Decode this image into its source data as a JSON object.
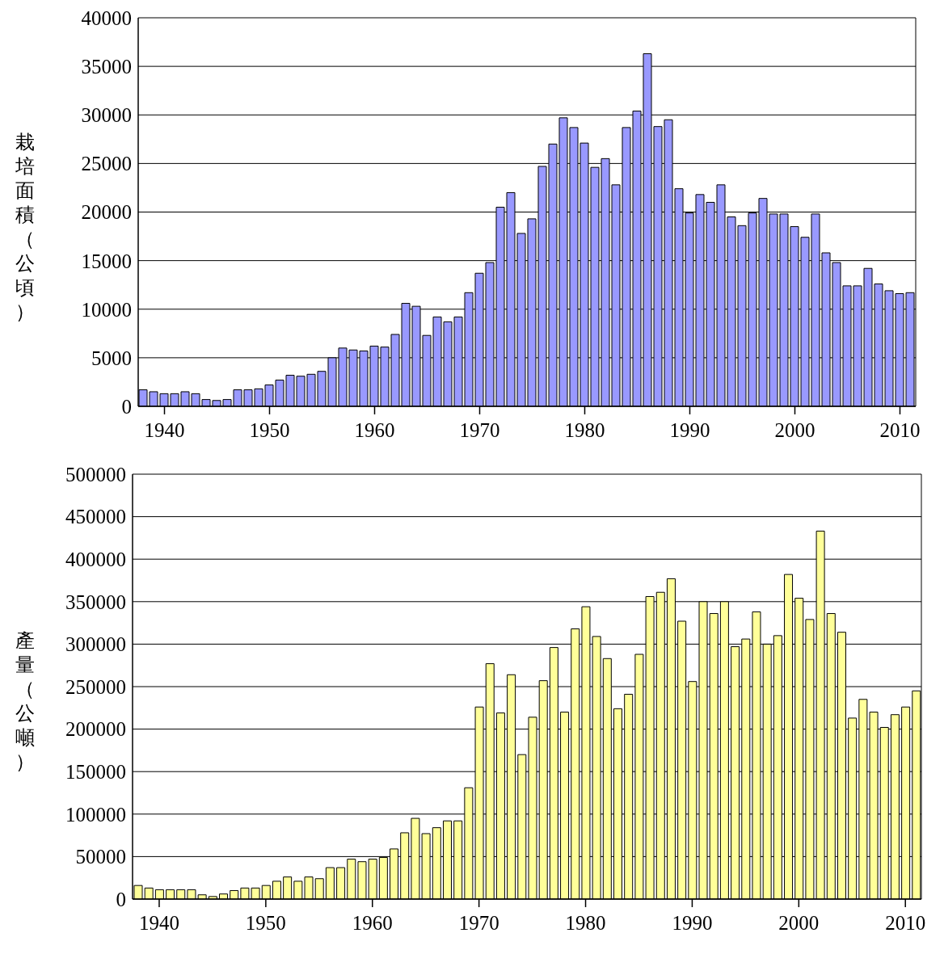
{
  "chart_data": [
    {
      "type": "bar",
      "ylabel": "栽培面積（公頃）",
      "color": "#9999ff",
      "grid": "y",
      "xlim": [
        1937.5,
        2011.5
      ],
      "xticks": [
        1940,
        1950,
        1960,
        1970,
        1980,
        1990,
        2000,
        2010
      ],
      "ylim": [
        0,
        40000
      ],
      "yticks": [
        0,
        5000,
        10000,
        15000,
        20000,
        25000,
        30000,
        35000,
        40000
      ],
      "x": [
        1938,
        1939,
        1940,
        1941,
        1942,
        1943,
        1944,
        1945,
        1946,
        1947,
        1948,
        1949,
        1950,
        1951,
        1952,
        1953,
        1954,
        1955,
        1956,
        1957,
        1958,
        1959,
        1960,
        1961,
        1962,
        1963,
        1964,
        1965,
        1966,
        1967,
        1968,
        1969,
        1970,
        1971,
        1972,
        1973,
        1974,
        1975,
        1976,
        1977,
        1978,
        1979,
        1980,
        1981,
        1982,
        1983,
        1984,
        1985,
        1986,
        1987,
        1988,
        1989,
        1990,
        1991,
        1992,
        1993,
        1994,
        1995,
        1996,
        1997,
        1998,
        1999,
        2000,
        2001,
        2002,
        2003,
        2004,
        2005,
        2006,
        2007,
        2008,
        2009,
        2010,
        2011
      ],
      "values": [
        1700,
        1500,
        1300,
        1300,
        1500,
        1300,
        700,
        600,
        700,
        1700,
        1700,
        1800,
        2200,
        2700,
        3200,
        3100,
        3300,
        3600,
        5000,
        6000,
        5800,
        5700,
        6200,
        6100,
        7400,
        10600,
        10300,
        7300,
        9200,
        8700,
        9200,
        11700,
        13700,
        14800,
        20500,
        22000,
        17800,
        19300,
        24700,
        27000,
        29700,
        28700,
        27100,
        24600,
        25500,
        22800,
        28700,
        30400,
        36300,
        28800,
        29500,
        22400,
        19900,
        21800,
        21000,
        22800,
        19500,
        18600,
        19900,
        21400,
        19800,
        19800,
        18500,
        17400,
        19800,
        15800,
        14800,
        12400,
        12400,
        14200,
        12600,
        11900,
        11600,
        11700
      ]
    },
    {
      "type": "bar",
      "ylabel": "產量（公噸）",
      "color": "#ffff99",
      "grid": "y",
      "xlim": [
        1937.5,
        2011.5
      ],
      "xticks": [
        1940,
        1950,
        1960,
        1970,
        1980,
        1990,
        2000,
        2010
      ],
      "ylim": [
        0,
        500000
      ],
      "yticks": [
        0,
        50000,
        100000,
        150000,
        200000,
        250000,
        300000,
        350000,
        400000,
        450000,
        500000
      ],
      "x": [
        1938,
        1939,
        1940,
        1941,
        1942,
        1943,
        1944,
        1945,
        1946,
        1947,
        1948,
        1949,
        1950,
        1951,
        1952,
        1953,
        1954,
        1955,
        1956,
        1957,
        1958,
        1959,
        1960,
        1961,
        1962,
        1963,
        1964,
        1965,
        1966,
        1967,
        1968,
        1969,
        1970,
        1971,
        1972,
        1973,
        1974,
        1975,
        1976,
        1977,
        1978,
        1979,
        1980,
        1981,
        1982,
        1983,
        1984,
        1985,
        1986,
        1987,
        1988,
        1989,
        1990,
        1991,
        1992,
        1993,
        1994,
        1995,
        1996,
        1997,
        1998,
        1999,
        2000,
        2001,
        2002,
        2003,
        2004,
        2005,
        2006,
        2007,
        2008,
        2009,
        2010,
        2011
      ],
      "values": [
        16000,
        13000,
        11000,
        11000,
        11000,
        11000,
        5000,
        3000,
        6000,
        10000,
        13000,
        13000,
        16000,
        21000,
        26000,
        21000,
        26000,
        24000,
        37000,
        37000,
        47000,
        44000,
        47000,
        49000,
        59000,
        78000,
        95000,
        77000,
        84000,
        92000,
        92000,
        131000,
        226000,
        277000,
        219000,
        264000,
        170000,
        214000,
        257000,
        296000,
        220000,
        318000,
        344000,
        309000,
        283000,
        224000,
        241000,
        288000,
        356000,
        361000,
        377000,
        327000,
        256000,
        350000,
        336000,
        350000,
        297000,
        306000,
        338000,
        300000,
        310000,
        382000,
        354000,
        329000,
        433000,
        336000,
        314000,
        213000,
        235000,
        220000,
        202000,
        217000,
        226000,
        245000
      ]
    }
  ]
}
